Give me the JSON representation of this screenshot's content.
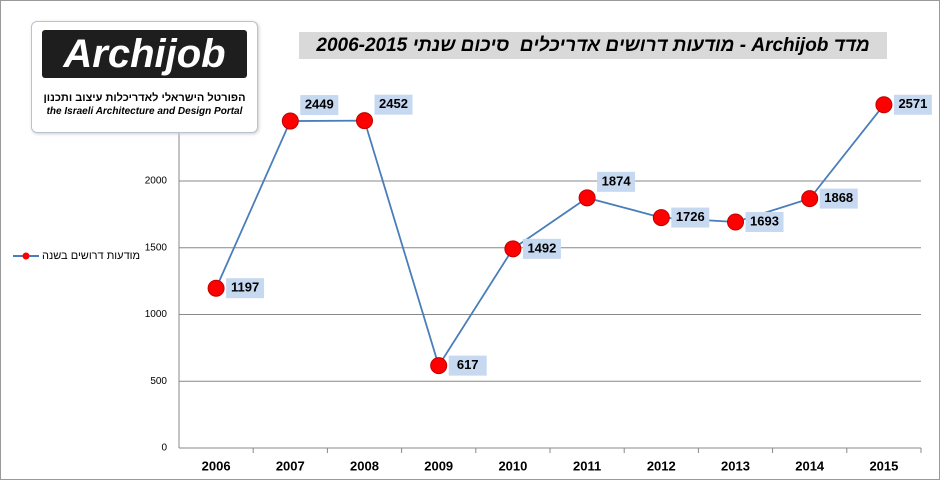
{
  "logo": {
    "name": "Archijob",
    "tagline_he": "הפורטל הישראלי לאדריכלות עיצוב ותכנון",
    "tagline_en": "the Israeli Architecture and Design Portal"
  },
  "chart_data": {
    "type": "line",
    "title": "מדד Archijob - מודעות דרושים אדריכלים  סיכום שנתי 2006-2015",
    "categories": [
      "2006",
      "2007",
      "2008",
      "2009",
      "2010",
      "2011",
      "2012",
      "2013",
      "2014",
      "2015"
    ],
    "series": [
      {
        "name": "מודעות דרושים בשנה",
        "color": "#4a7ebb",
        "marker_color": "#ff0000",
        "values": [
          1197,
          2449,
          2452,
          617,
          1492,
          1874,
          1726,
          1693,
          1868,
          2571
        ]
      }
    ],
    "ylim": [
      0,
      3000
    ],
    "yticks": [
      0,
      500,
      1000,
      1500,
      2000
    ],
    "grid": true
  }
}
